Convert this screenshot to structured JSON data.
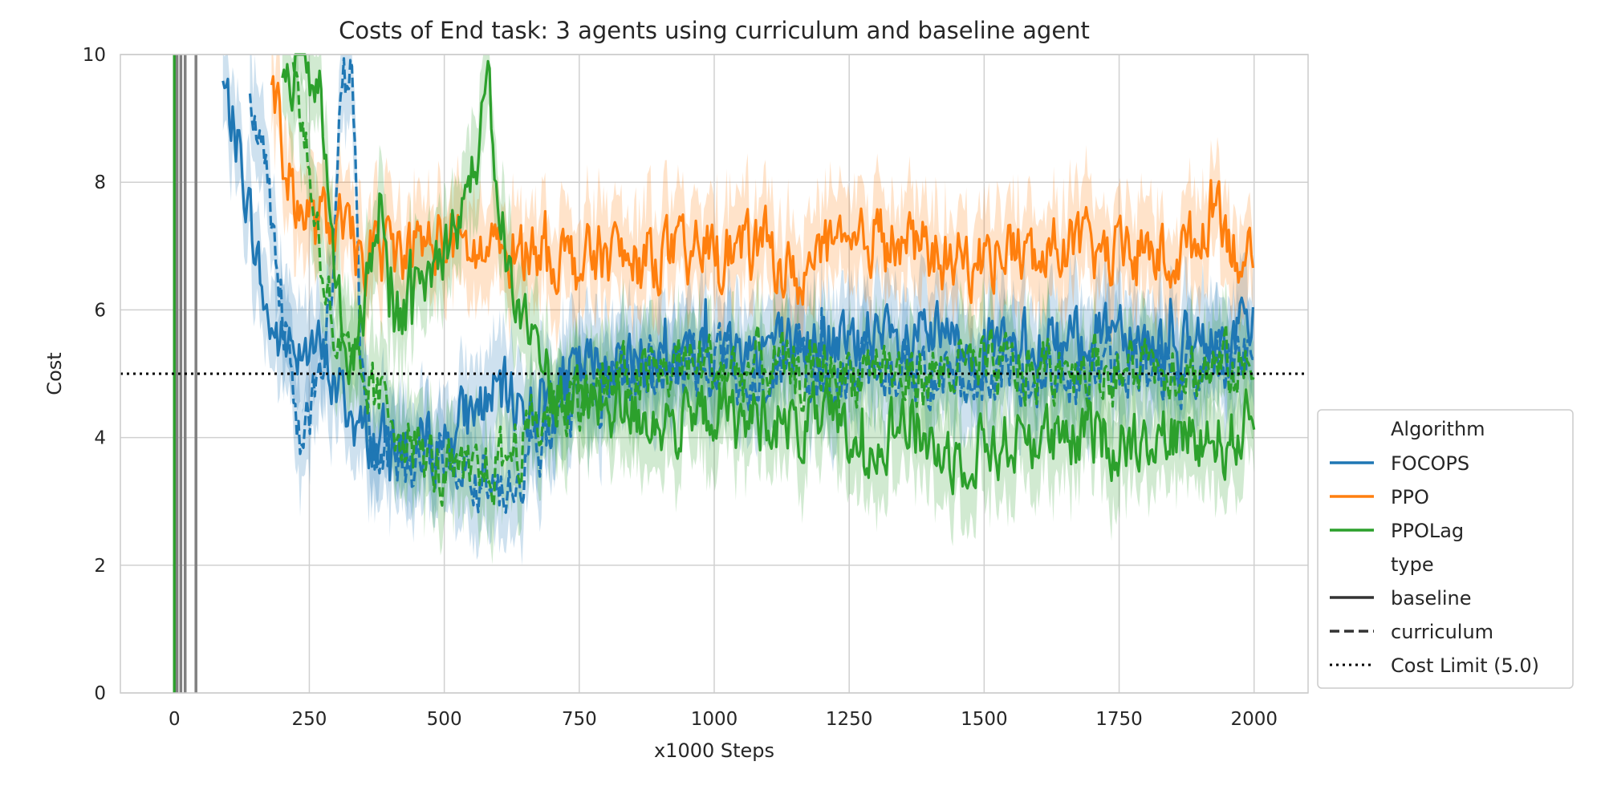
{
  "chart_data": {
    "type": "line",
    "title": "Costs of End task: 3 agents using curriculum and baseline agent",
    "xlabel": "x1000 Steps",
    "ylabel": "Cost",
    "xlim": [
      -100,
      2100
    ],
    "ylim": [
      0,
      10
    ],
    "xticks": [
      0,
      250,
      500,
      750,
      1000,
      1250,
      1500,
      1750,
      2000
    ],
    "yticks": [
      0,
      2,
      4,
      6,
      8,
      10
    ],
    "grid": true,
    "legend_position": "lower-right outside",
    "cost_limit": {
      "value": 5.0,
      "label": "Cost Limit (5.0)",
      "color": "#000000"
    },
    "legend": {
      "algorithm_title": "Algorithm",
      "type_title": "type",
      "items": [
        "FOCOPS",
        "PPO",
        "PPOLag"
      ],
      "styles": [
        "baseline",
        "curriculum",
        "Cost Limit (5.0)"
      ]
    },
    "series": [
      {
        "name": "FOCOPS",
        "type": "baseline",
        "color": "#1f77b4",
        "keypoints": [
          [
            90,
            9.5
          ],
          [
            120,
            8.5
          ],
          [
            150,
            7.0
          ],
          [
            170,
            5.9
          ],
          [
            200,
            5.4
          ],
          [
            250,
            5.6
          ],
          [
            300,
            4.8
          ],
          [
            350,
            4.0
          ],
          [
            400,
            3.9
          ],
          [
            450,
            3.8
          ],
          [
            500,
            4.0
          ],
          [
            550,
            4.4
          ],
          [
            600,
            4.7
          ],
          [
            650,
            4.5
          ],
          [
            700,
            4.7
          ],
          [
            750,
            5.0
          ],
          [
            800,
            5.2
          ],
          [
            850,
            5.1
          ],
          [
            900,
            5.3
          ],
          [
            950,
            5.2
          ],
          [
            1000,
            5.3
          ],
          [
            1050,
            5.4
          ],
          [
            1100,
            5.5
          ],
          [
            1150,
            5.4
          ],
          [
            1200,
            5.5
          ],
          [
            1250,
            5.4
          ],
          [
            1300,
            5.5
          ],
          [
            1350,
            5.3
          ],
          [
            1400,
            5.6
          ],
          [
            1450,
            5.4
          ],
          [
            1500,
            5.5
          ],
          [
            1550,
            5.3
          ],
          [
            1600,
            5.5
          ],
          [
            1650,
            5.4
          ],
          [
            1700,
            5.6
          ],
          [
            1750,
            5.9
          ],
          [
            1800,
            5.5
          ],
          [
            1850,
            5.5
          ],
          [
            1900,
            5.3
          ],
          [
            1950,
            5.6
          ],
          [
            2000,
            5.7
          ]
        ]
      },
      {
        "name": "FOCOPS",
        "type": "curriculum",
        "color": "#1f77b4",
        "keypoints": [
          [
            140,
            9.8
          ],
          [
            180,
            7.5
          ],
          [
            210,
            5.5
          ],
          [
            230,
            4.0
          ],
          [
            260,
            4.6
          ],
          [
            290,
            6.0
          ],
          [
            310,
            9.5
          ],
          [
            330,
            9.9
          ],
          [
            345,
            5.0
          ],
          [
            380,
            3.6
          ],
          [
            420,
            3.7
          ],
          [
            460,
            3.6
          ],
          [
            500,
            3.9
          ],
          [
            550,
            3.5
          ],
          [
            600,
            3.3
          ],
          [
            650,
            3.6
          ],
          [
            700,
            4.2
          ],
          [
            750,
            4.6
          ],
          [
            800,
            4.8
          ],
          [
            850,
            5.0
          ],
          [
            900,
            5.1
          ],
          [
            950,
            5.0
          ],
          [
            1000,
            5.2
          ],
          [
            1050,
            5.0
          ],
          [
            1100,
            5.1
          ],
          [
            1150,
            5.2
          ],
          [
            1200,
            5.0
          ],
          [
            1250,
            5.1
          ],
          [
            1300,
            5.0
          ],
          [
            1350,
            5.1
          ],
          [
            1400,
            5.0
          ],
          [
            1450,
            5.1
          ],
          [
            1500,
            4.9
          ],
          [
            1550,
            5.0
          ],
          [
            1600,
            5.1
          ],
          [
            1650,
            5.0
          ],
          [
            1700,
            5.1
          ],
          [
            1750,
            5.0
          ],
          [
            1800,
            5.1
          ],
          [
            1850,
            5.0
          ],
          [
            1900,
            5.1
          ],
          [
            1950,
            5.2
          ],
          [
            2000,
            5.3
          ]
        ]
      },
      {
        "name": "PPO",
        "type": "baseline",
        "color": "#ff7f0e",
        "keypoints": [
          [
            180,
            9.8
          ],
          [
            200,
            8.5
          ],
          [
            220,
            7.8
          ],
          [
            260,
            7.3
          ],
          [
            300,
            7.4
          ],
          [
            340,
            6.8
          ],
          [
            400,
            6.9
          ],
          [
            450,
            7.0
          ],
          [
            500,
            7.1
          ],
          [
            550,
            6.9
          ],
          [
            600,
            6.8
          ],
          [
            650,
            7.0
          ],
          [
            700,
            6.9
          ],
          [
            750,
            6.7
          ],
          [
            800,
            6.9
          ],
          [
            850,
            6.7
          ],
          [
            900,
            6.9
          ],
          [
            950,
            6.8
          ],
          [
            1000,
            7.0
          ],
          [
            1050,
            6.9
          ],
          [
            1100,
            7.0
          ],
          [
            1150,
            6.4
          ],
          [
            1200,
            6.9
          ],
          [
            1250,
            6.8
          ],
          [
            1300,
            7.2
          ],
          [
            1350,
            7.0
          ],
          [
            1400,
            6.9
          ],
          [
            1450,
            6.7
          ],
          [
            1500,
            6.8
          ],
          [
            1550,
            7.0
          ],
          [
            1600,
            6.7
          ],
          [
            1650,
            7.1
          ],
          [
            1700,
            6.9
          ],
          [
            1750,
            6.8
          ],
          [
            1800,
            6.9
          ],
          [
            1850,
            6.8
          ],
          [
            1900,
            7.1
          ],
          [
            1930,
            7.9
          ],
          [
            1960,
            7.0
          ],
          [
            2000,
            6.6
          ]
        ]
      },
      {
        "name": "PPOLag",
        "type": "baseline",
        "color": "#2ca02c",
        "keypoints": [
          [
            200,
            9.5
          ],
          [
            240,
            9.9
          ],
          [
            270,
            9.3
          ],
          [
            300,
            6.3
          ],
          [
            330,
            5.0
          ],
          [
            360,
            6.5
          ],
          [
            380,
            7.8
          ],
          [
            400,
            5.8
          ],
          [
            450,
            6.2
          ],
          [
            500,
            7.0
          ],
          [
            550,
            8.0
          ],
          [
            580,
            9.4
          ],
          [
            600,
            7.8
          ],
          [
            630,
            6.0
          ],
          [
            680,
            5.4
          ],
          [
            700,
            4.7
          ],
          [
            750,
            4.6
          ],
          [
            800,
            4.5
          ],
          [
            850,
            4.4
          ],
          [
            900,
            4.3
          ],
          [
            950,
            4.1
          ],
          [
            1000,
            4.5
          ],
          [
            1050,
            4.2
          ],
          [
            1100,
            4.4
          ],
          [
            1150,
            4.1
          ],
          [
            1200,
            4.3
          ],
          [
            1250,
            3.9
          ],
          [
            1300,
            4.0
          ],
          [
            1350,
            4.3
          ],
          [
            1400,
            3.9
          ],
          [
            1450,
            3.7
          ],
          [
            1500,
            3.9
          ],
          [
            1550,
            3.9
          ],
          [
            1600,
            4.1
          ],
          [
            1650,
            3.8
          ],
          [
            1700,
            4.1
          ],
          [
            1750,
            3.9
          ],
          [
            1800,
            4.1
          ],
          [
            1850,
            4.0
          ],
          [
            1900,
            4.1
          ],
          [
            1950,
            3.9
          ],
          [
            2000,
            4.3
          ]
        ]
      },
      {
        "name": "PPOLag",
        "type": "curriculum",
        "color": "#2ca02c",
        "keypoints": [
          [
            220,
            9.9
          ],
          [
            250,
            8.2
          ],
          [
            270,
            7.0
          ],
          [
            300,
            5.4
          ],
          [
            350,
            4.8
          ],
          [
            400,
            4.4
          ],
          [
            450,
            3.8
          ],
          [
            500,
            3.4
          ],
          [
            550,
            3.3
          ],
          [
            600,
            3.6
          ],
          [
            650,
            4.0
          ],
          [
            700,
            4.5
          ],
          [
            750,
            4.7
          ],
          [
            800,
            4.8
          ],
          [
            850,
            4.9
          ],
          [
            900,
            5.0
          ],
          [
            950,
            5.2
          ],
          [
            1000,
            5.1
          ],
          [
            1050,
            5.0
          ],
          [
            1100,
            5.2
          ],
          [
            1150,
            4.9
          ],
          [
            1200,
            5.1
          ],
          [
            1250,
            5.0
          ],
          [
            1300,
            5.2
          ],
          [
            1350,
            4.9
          ],
          [
            1400,
            5.0
          ],
          [
            1450,
            5.1
          ],
          [
            1500,
            5.0
          ],
          [
            1550,
            5.1
          ],
          [
            1600,
            5.0
          ],
          [
            1650,
            5.2
          ],
          [
            1700,
            5.1
          ],
          [
            1750,
            5.0
          ],
          [
            1800,
            5.1
          ],
          [
            1850,
            5.2
          ],
          [
            1900,
            5.0
          ],
          [
            1950,
            5.1
          ],
          [
            2000,
            5.0
          ]
        ]
      }
    ],
    "early_spikes": [
      {
        "x": 0,
        "color": "#2ca02c"
      },
      {
        "x": 5,
        "color": "#808080"
      },
      {
        "x": 12,
        "color": "#808080"
      },
      {
        "x": 20,
        "color": "#808080"
      },
      {
        "x": 40,
        "color": "#808080"
      }
    ]
  }
}
